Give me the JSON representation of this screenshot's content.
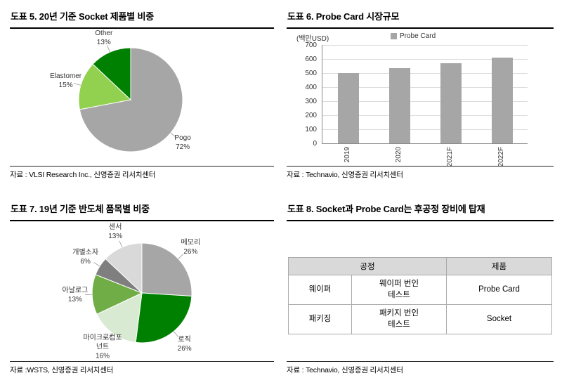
{
  "panels": {
    "fig5": {
      "title": "도표 5. 20년 기준 Socket 제품별 비중",
      "source": "자료 : VLSI Research Inc., 신영증권 리서치센터"
    },
    "fig6": {
      "title": "도표 6. Probe Card 시장규모",
      "source": "자료 : Technavio, 신영증권 리서치센터"
    },
    "fig7": {
      "title": "도표 7. 19년 기준 반도체 품목별 비중",
      "source": "자료 :WSTS, 신영증권 리서치센터"
    },
    "fig8": {
      "title": "도표 8. Socket과 Probe Card는 후공정 장비에 탑재",
      "source": "자료 : Technavio, 신영증권 리서치센터",
      "table": {
        "process_header": "공정",
        "product_header": "제품",
        "rows": [
          {
            "stage": "웨이퍼",
            "process": "웨이퍼 번인\n테스트",
            "product": "Probe Card"
          },
          {
            "stage": "패키징",
            "process": "패키지 번인\n테스트",
            "product": "Socket"
          }
        ]
      }
    }
  },
  "chart_data": [
    {
      "id": "socket-share-pie",
      "type": "pie",
      "title": "20년 기준 Socket 제품별 비중",
      "labels": [
        "Pogo",
        "Elastomer",
        "Other"
      ],
      "values": [
        72,
        15,
        13
      ],
      "colors": [
        "#a6a6a6",
        "#92d050",
        "#008000"
      ],
      "start_angle_deg": 0,
      "direction": "clockwise",
      "label_style": "name and percent outside slices"
    },
    {
      "id": "probe-card-market-bar",
      "type": "bar",
      "title": "Probe Card 시장규모",
      "categories": [
        "2019",
        "2020",
        "2021F",
        "2022F"
      ],
      "values": [
        500,
        535,
        570,
        610
      ],
      "unit_label": "(백만USD)",
      "legend": "Probe Card",
      "ylim": [
        0,
        700
      ],
      "ytick_step": 100,
      "bar_color": "#a6a6a6",
      "grid": true,
      "xlabel_rotation": "vertical"
    },
    {
      "id": "semiconductor-mix-pie",
      "type": "pie",
      "title": "19년 기준 반도체 품목별 비중",
      "labels": [
        "메모리",
        "로직",
        "마이크로컴포넌트",
        "아날로그",
        "개별소자",
        "센서"
      ],
      "values": [
        26,
        26,
        16,
        13,
        6,
        13
      ],
      "colors": [
        "#a6a6a6",
        "#008000",
        "#d9ead3",
        "#70ad47",
        "#7f7f7f",
        "#d9d9d9"
      ],
      "start_angle_deg": 0,
      "direction": "clockwise",
      "label_style": "name and percent outside slices"
    }
  ]
}
